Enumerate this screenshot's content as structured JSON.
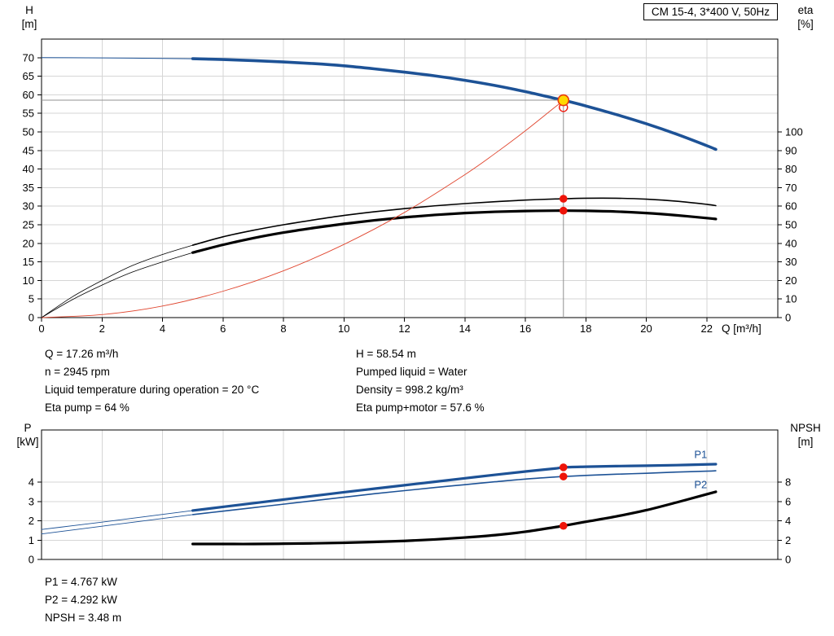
{
  "colors": {
    "curve_blue": "#1d5296",
    "curve_black": "#000000",
    "system_red": "#e0462f",
    "dot_red": "#ee1409",
    "duty_fill": "#ffd800",
    "duty_stroke": "#e8380d",
    "grid": "#d6d6d6",
    "crosshair": "#909090"
  },
  "chart_data": [
    {
      "type": "line",
      "title": "CM 15-4, 3*400 V, 50Hz",
      "x_axis": {
        "label": "Q [m³/h]",
        "range": [
          0,
          24.35
        ],
        "ticks": [
          0,
          2,
          4,
          6,
          8,
          10,
          12,
          14,
          16,
          18,
          20,
          22
        ]
      },
      "y_left": {
        "label_line1": "H",
        "label_line2": "[m]",
        "range": [
          0,
          75
        ],
        "ticks": [
          0,
          5,
          10,
          15,
          20,
          25,
          30,
          35,
          40,
          45,
          50,
          55,
          60,
          65,
          70
        ]
      },
      "y_right": {
        "label_line1": "eta",
        "label_line2": "[%]",
        "range": [
          0,
          150
        ],
        "ticks": [
          0,
          10,
          20,
          30,
          40,
          50,
          60,
          70,
          80,
          90,
          100
        ]
      },
      "series": [
        {
          "name": "h-curve-lead",
          "axis": "left",
          "color": "#1d5296",
          "width": 1,
          "points": [
            [
              0,
              70
            ],
            [
              1.5,
              69.95
            ],
            [
              3,
              69.87
            ],
            [
              4,
              69.8
            ],
            [
              5,
              69.72
            ]
          ]
        },
        {
          "name": "h-curve",
          "axis": "left",
          "color": "#1d5296",
          "width": 3.6,
          "points": [
            [
              5,
              69.72
            ],
            [
              6,
              69.5
            ],
            [
              7,
              69.2
            ],
            [
              8,
              68.85
            ],
            [
              9,
              68.4
            ],
            [
              10,
              67.8
            ],
            [
              11,
              67.0
            ],
            [
              12,
              66.1
            ],
            [
              13,
              65.1
            ],
            [
              14,
              63.9
            ],
            [
              15,
              62.5
            ],
            [
              16,
              60.85
            ],
            [
              17,
              59.0
            ],
            [
              17.26,
              58.54
            ],
            [
              18,
              57.0
            ],
            [
              19,
              54.7
            ],
            [
              20,
              52.2
            ],
            [
              21,
              49.4
            ],
            [
              22,
              46.3
            ],
            [
              22.3,
              45.3
            ]
          ]
        },
        {
          "name": "eta-pump-lead",
          "axis": "right",
          "color": "#000000",
          "width": 0.8,
          "points": [
            [
              0,
              0
            ],
            [
              1,
              11
            ],
            [
              2,
              20
            ],
            [
              3,
              28
            ],
            [
              4,
              34
            ],
            [
              5,
              39
            ]
          ]
        },
        {
          "name": "eta-pump-curve",
          "axis": "right",
          "color": "#000000",
          "width": 1.6,
          "points": [
            [
              5,
              39
            ],
            [
              6,
              43.5
            ],
            [
              7,
              47
            ],
            [
              8,
              50
            ],
            [
              9,
              52.6
            ],
            [
              10,
              55
            ],
            [
              11,
              57
            ],
            [
              12,
              58.7
            ],
            [
              13,
              60.2
            ],
            [
              14,
              61.4
            ],
            [
              15,
              62.4
            ],
            [
              16,
              63.3
            ],
            [
              17,
              63.9
            ],
            [
              17.26,
              64
            ],
            [
              18,
              64.3
            ],
            [
              19,
              64.3
            ],
            [
              20,
              63.8
            ],
            [
              21,
              62.7
            ],
            [
              22,
              61
            ],
            [
              22.3,
              60.3
            ]
          ]
        },
        {
          "name": "eta-pump-motor-lead",
          "axis": "right",
          "color": "#000000",
          "width": 0.8,
          "points": [
            [
              0,
              0
            ],
            [
              1,
              9.5
            ],
            [
              2,
              17.5
            ],
            [
              3,
              24.5
            ],
            [
              4,
              30
            ],
            [
              5,
              35
            ]
          ]
        },
        {
          "name": "eta-pump-motor-curve",
          "axis": "right",
          "color": "#000000",
          "width": 3.2,
          "points": [
            [
              5,
              35
            ],
            [
              6,
              39.2
            ],
            [
              7,
              42.8
            ],
            [
              8,
              45.8
            ],
            [
              9,
              48.3
            ],
            [
              10,
              50.5
            ],
            [
              11,
              52.4
            ],
            [
              12,
              54
            ],
            [
              13,
              55.3
            ],
            [
              14,
              56.3
            ],
            [
              15,
              57
            ],
            [
              16,
              57.4
            ],
            [
              17,
              57.6
            ],
            [
              17.26,
              57.6
            ],
            [
              18,
              57.5
            ],
            [
              19,
              57.1
            ],
            [
              20,
              56.3
            ],
            [
              21,
              55.1
            ],
            [
              22,
              53.6
            ],
            [
              22.3,
              53.1
            ]
          ]
        },
        {
          "name": "system-curve",
          "axis": "left",
          "color": "#e0462f",
          "width": 0.9,
          "points": [
            [
              0,
              0
            ],
            [
              2,
              0.8
            ],
            [
              4,
              3.1
            ],
            [
              6,
              7.1
            ],
            [
              8,
              12.6
            ],
            [
              10,
              19.7
            ],
            [
              12,
              28.3
            ],
            [
              14,
              38.5
            ],
            [
              15,
              44.2
            ],
            [
              16,
              50.3
            ],
            [
              17,
              56.8
            ],
            [
              17.26,
              58.3
            ]
          ]
        }
      ],
      "crosshair": [
        {
          "name": "duty-h-line",
          "axis": "left",
          "color": "#909090",
          "width": 1,
          "points": [
            [
              0,
              58.54
            ],
            [
              17.26,
              58.54
            ]
          ]
        },
        {
          "name": "duty-q-line",
          "axis": "left",
          "color": "#909090",
          "width": 1,
          "points": [
            [
              17.26,
              0
            ],
            [
              17.26,
              58.54
            ]
          ]
        }
      ],
      "markers": [
        {
          "name": "requested-duty-marker",
          "type": "open",
          "axis": "left",
          "x": 17.26,
          "y": 56.6,
          "r": 5,
          "fill": "none",
          "stroke": "#ee1409",
          "stroke_width": 1.4
        },
        {
          "name": "duty-point-marker",
          "type": "duty",
          "axis": "left",
          "x": 17.26,
          "y": 58.54,
          "r": 6.5,
          "fill": "#ffd800",
          "stroke": "#e8380d",
          "stroke_width": 1.6
        },
        {
          "name": "eta-pump-duty-dot",
          "type": "dot",
          "axis": "right",
          "x": 17.26,
          "y": 64,
          "r": 4.8,
          "fill": "#ee1409",
          "stroke": "none",
          "stroke_width": 0
        },
        {
          "name": "eta-pump-motor-duty-dot",
          "type": "dot",
          "axis": "right",
          "x": 17.26,
          "y": 57.6,
          "r": 4.8,
          "fill": "#ee1409",
          "stroke": "none",
          "stroke_width": 0
        }
      ],
      "labels": [],
      "annotations_left": [
        "Q = 17.26 m³/h",
        "n = 2945 rpm",
        "Liquid temperature during operation = 20 °C",
        "Eta pump = 64 %"
      ],
      "annotations_right": [
        "H = 58.54 m",
        "Pumped liquid = Water",
        "Density = 998.2 kg/m³",
        "Eta pump+motor = 57.6 %"
      ]
    },
    {
      "type": "line",
      "title": "",
      "x_axis": {
        "label": "",
        "range": [
          0,
          24.35
        ],
        "ticks": [
          0,
          2,
          4,
          6,
          8,
          10,
          12,
          14,
          16,
          18,
          20,
          22
        ]
      },
      "y_left": {
        "label_line1": "P",
        "label_line2": "[kW]",
        "range": [
          0,
          6.7
        ],
        "ticks": [
          0,
          1,
          2,
          3,
          4
        ]
      },
      "y_right": {
        "label_line1": "NPSH",
        "label_line2": "[m]",
        "range": [
          0,
          13.4
        ],
        "ticks": [
          0,
          2,
          4,
          6,
          8
        ]
      },
      "series": [
        {
          "name": "p1-curve-lead",
          "axis": "left",
          "color": "#1d5296",
          "width": 0.9,
          "points": [
            [
              0,
              1.55
            ],
            [
              1,
              1.74
            ],
            [
              2,
              1.93
            ],
            [
              3,
              2.13
            ],
            [
              4,
              2.33
            ],
            [
              5,
              2.53
            ]
          ]
        },
        {
          "name": "p1-curve",
          "axis": "left",
          "color": "#1d5296",
          "width": 3.2,
          "points": [
            [
              5,
              2.53
            ],
            [
              6,
              2.72
            ],
            [
              7,
              2.91
            ],
            [
              8,
              3.1
            ],
            [
              9,
              3.29
            ],
            [
              10,
              3.48
            ],
            [
              11,
              3.66
            ],
            [
              12,
              3.84
            ],
            [
              13,
              4.02
            ],
            [
              14,
              4.2
            ],
            [
              15,
              4.38
            ],
            [
              16,
              4.55
            ],
            [
              17,
              4.71
            ],
            [
              17.26,
              4.767
            ],
            [
              18,
              4.8
            ],
            [
              19,
              4.83
            ],
            [
              20,
              4.85
            ],
            [
              21,
              4.88
            ],
            [
              22,
              4.92
            ],
            [
              22.3,
              4.93
            ]
          ]
        },
        {
          "name": "p2-curve-lead",
          "axis": "left",
          "color": "#1d5296",
          "width": 0.9,
          "points": [
            [
              0,
              1.32
            ],
            [
              1,
              1.52
            ],
            [
              2,
              1.72
            ],
            [
              3,
              1.92
            ],
            [
              4,
              2.12
            ],
            [
              5,
              2.32
            ]
          ]
        },
        {
          "name": "p2-curve",
          "axis": "left",
          "color": "#1d5296",
          "width": 1.6,
          "points": [
            [
              5,
              2.32
            ],
            [
              6,
              2.5
            ],
            [
              7,
              2.68
            ],
            [
              8,
              2.86
            ],
            [
              9,
              3.04
            ],
            [
              10,
              3.22
            ],
            [
              11,
              3.4
            ],
            [
              12,
              3.56
            ],
            [
              13,
              3.72
            ],
            [
              14,
              3.87
            ],
            [
              15,
              4.02
            ],
            [
              16,
              4.16
            ],
            [
              17,
              4.27
            ],
            [
              17.26,
              4.292
            ],
            [
              18,
              4.35
            ],
            [
              19,
              4.41
            ],
            [
              20,
              4.46
            ],
            [
              21,
              4.52
            ],
            [
              22,
              4.57
            ],
            [
              22.3,
              4.59
            ]
          ]
        },
        {
          "name": "npsh-curve",
          "axis": "right",
          "color": "#000000",
          "width": 3.2,
          "points": [
            [
              5,
              1.6
            ],
            [
              6,
              1.6
            ],
            [
              7,
              1.6
            ],
            [
              8,
              1.63
            ],
            [
              9,
              1.67
            ],
            [
              10,
              1.73
            ],
            [
              11,
              1.81
            ],
            [
              12,
              1.92
            ],
            [
              13,
              2.07
            ],
            [
              14,
              2.27
            ],
            [
              15,
              2.52
            ],
            [
              16,
              2.87
            ],
            [
              17,
              3.35
            ],
            [
              17.26,
              3.48
            ],
            [
              18,
              3.9
            ],
            [
              19,
              4.45
            ],
            [
              20,
              5.1
            ],
            [
              21,
              5.9
            ],
            [
              22,
              6.75
            ],
            [
              22.3,
              7.0
            ]
          ]
        }
      ],
      "crosshair": [],
      "markers": [
        {
          "name": "p1-duty-dot",
          "type": "dot",
          "axis": "left",
          "x": 17.26,
          "y": 4.767,
          "r": 4.8,
          "fill": "#ee1409",
          "stroke": "none",
          "stroke_width": 0
        },
        {
          "name": "p2-duty-dot",
          "type": "dot",
          "axis": "left",
          "x": 17.26,
          "y": 4.292,
          "r": 4.8,
          "fill": "#ee1409",
          "stroke": "none",
          "stroke_width": 0
        },
        {
          "name": "npsh-duty-dot",
          "type": "dot",
          "axis": "right",
          "x": 17.26,
          "y": 3.48,
          "r": 4.8,
          "fill": "#ee1409",
          "stroke": "none",
          "stroke_width": 0
        }
      ],
      "labels": [
        {
          "name": "p1-curve-label",
          "text": "P1",
          "x": 21.8,
          "y": 5.25,
          "color": "#1d5296"
        },
        {
          "name": "p2-curve-label",
          "text": "P2",
          "x": 21.8,
          "y": 3.68,
          "color": "#1d5296"
        }
      ],
      "annotations_left": [
        "P1 = 4.767 kW",
        "P2 = 4.292 kW",
        "NPSH = 3.48 m"
      ],
      "annotations_right": []
    }
  ]
}
